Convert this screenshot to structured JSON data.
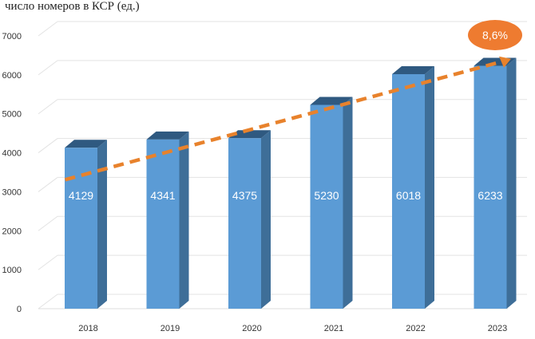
{
  "chart_data": {
    "type": "bar",
    "title": "число номеров в КСР (ед.)",
    "categories": [
      "2018",
      "2019",
      "2020",
      "2021",
      "2022",
      "2023"
    ],
    "values": [
      4129,
      4341,
      4375,
      5230,
      6018,
      6233
    ],
    "value_labels": [
      "4129",
      "4341",
      "4375",
      "5230",
      "6018",
      "6233"
    ],
    "ylim": [
      0,
      7000
    ],
    "yticks": [
      "0",
      "1000",
      "2000",
      "3000",
      "4000",
      "5000",
      "6000",
      "7000"
    ],
    "grid": true,
    "trendline": {
      "style": "dashed",
      "color": "#e8822c"
    },
    "annotation": {
      "text": "8,6%",
      "color": "#ee7b30"
    },
    "colors": {
      "bar_front": "#5b9bd5",
      "bar_side": "#3e6e98",
      "bar_top": "#2f5980"
    }
  }
}
